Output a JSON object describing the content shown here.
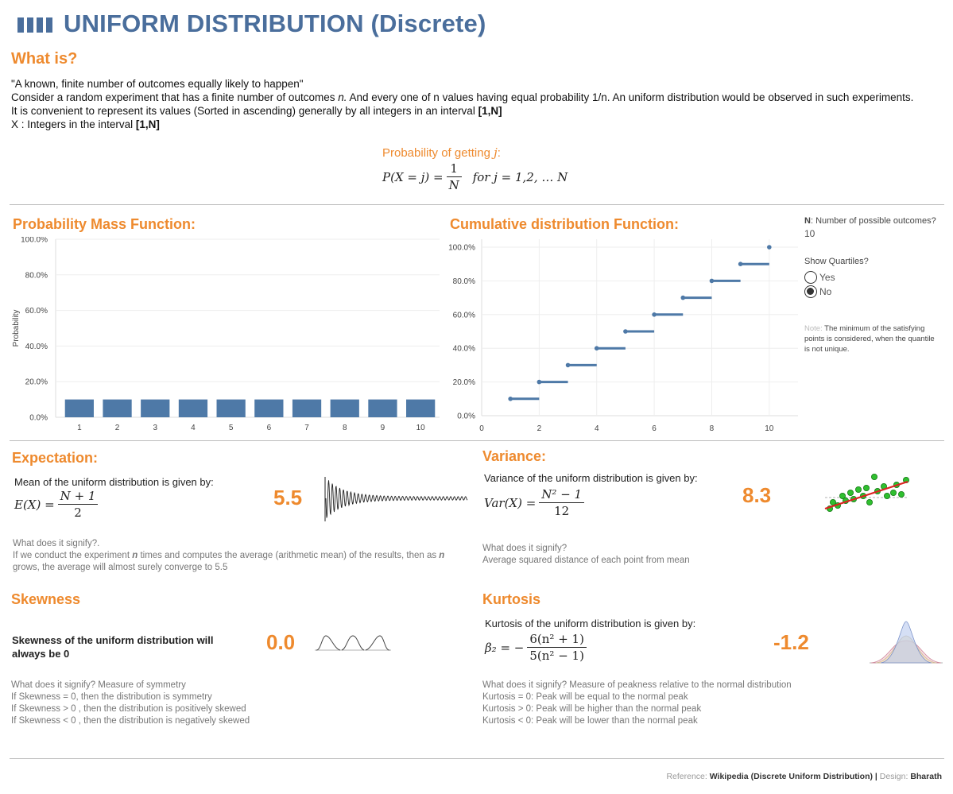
{
  "header": {
    "title_icon": "bar-chart-icon",
    "title": "UNIFORM DISTRIBUTION (Discrete)"
  },
  "intro": {
    "heading": "What is?",
    "quote": "\"A known, finite number of outcomes equally likely to happen\"",
    "line2_pre": "Consider a random experiment that has a finite number of outcomes ",
    "line2_n": "n.",
    "line2_post": " And every one of n values having equal probability 1/n. An uniform distribution would be observed in such experiments.",
    "line3_pre": "It is convenient to represent its values (Sorted in ascending) generally by all integers in an interval ",
    "line3_bold": "[1,N]",
    "line4_pre": "X : Integers in the interval ",
    "line4_bold": "[1,N]"
  },
  "prob_formula": {
    "label_pre": "Probability of getting ",
    "label_var": "j",
    "label_post": ":",
    "lhs": "P(X = j) =",
    "num": "1",
    "den": "N",
    "rhs": "for j = 1,2, … N"
  },
  "pmf": {
    "title": "Probability Mass Function:",
    "ylabel": "Probability"
  },
  "cdf": {
    "title": "Cumulative distribution Function:"
  },
  "controls": {
    "n_label_bold": "N",
    "n_label": ": Number of possible outcomes?",
    "n_value": "10",
    "quartiles_label": "Show Quartiles?",
    "opt_yes": "Yes",
    "opt_no": "No",
    "selected": "No",
    "note_label": "Note:",
    "note_text": " The minimum of the satisfying points is considered, when the quantile is not unique."
  },
  "expectation": {
    "title": "Expectation:",
    "desc": "Mean of the uniform distribution is given by:",
    "lhs": "E(X) =",
    "num": "N + 1",
    "den": "2",
    "value": "5.5",
    "signify_q": "What does it signify?.",
    "signify_pre": "If we conduct the experiment ",
    "signify_n": "n",
    "signify_post": " times and computes the average (arithmetic mean) of the results, then as ",
    "signify_n2": "n",
    "signify_line2": "grows, the average will almost surely converge to 5.5"
  },
  "variance": {
    "title": "Variance:",
    "desc": "Variance of the uniform distribution is given by:",
    "lhs": "Var(X) =",
    "num": "N² − 1",
    "den": "12",
    "value": "8.3",
    "signify_q": "What does it signify?",
    "signify": "Average squared distance of each point from mean"
  },
  "skewness": {
    "title": "Skewness",
    "desc_line1": "Skewness of the uniform distribution will",
    "desc_line2": "always be 0",
    "value": "0.0",
    "signify_lines": [
      "What does it signify?  Measure of symmetry",
      "If Skewness = 0, then the distribution is symmetry",
      "If Skewness > 0 , then the distribution is positively skewed",
      "If Skewness < 0 , then the distribution is negatively skewed"
    ]
  },
  "kurtosis": {
    "title": "Kurtosis",
    "desc": "Kurtosis of the uniform distribution is given by:",
    "lhs": "β₂ = −",
    "num": "6(n² + 1)",
    "den": "5(n² − 1)",
    "value": "-1.2",
    "signify_lines": [
      "What does it signify?  Measure of peakness relative to the normal distribution",
      "Kurtosis = 0: Peak will be equal to the normal peak",
      "Kurtosis > 0: Peak will be higher than the normal peak",
      "Kurtosis < 0: Peak will be lower than the normal peak"
    ]
  },
  "footer": {
    "ref_label": "Reference:",
    "ref_value": "Wikipedia (Discrete Uniform Distribution)",
    "sep": " | ",
    "design_label": "Design:",
    "design_value": "Bharath"
  },
  "colors": {
    "accent": "#ee8a2e",
    "title_blue": "#4a6e9c",
    "bar": "#4e79a7"
  },
  "chart_data": [
    {
      "type": "bar",
      "title": "Probability Mass Function:",
      "ylabel": "Probability",
      "categories": [
        "1",
        "2",
        "3",
        "4",
        "5",
        "6",
        "7",
        "8",
        "9",
        "10"
      ],
      "values": [
        0.1,
        0.1,
        0.1,
        0.1,
        0.1,
        0.1,
        0.1,
        0.1,
        0.1,
        0.1
      ],
      "ylim": [
        0,
        1
      ],
      "yticks": [
        "0.0%",
        "20.0%",
        "40.0%",
        "60.0%",
        "80.0%",
        "100.0%"
      ],
      "grid": true
    },
    {
      "type": "line",
      "title": "Cumulative distribution Function:",
      "x": [
        1,
        2,
        3,
        4,
        5,
        6,
        7,
        8,
        9,
        10
      ],
      "values": [
        0.1,
        0.2,
        0.3,
        0.4,
        0.5,
        0.6,
        0.7,
        0.8,
        0.9,
        1.0
      ],
      "xlim": [
        0,
        11
      ],
      "xticks": [
        "0",
        "2",
        "4",
        "6",
        "8",
        "10"
      ],
      "ylim": [
        0,
        1
      ],
      "yticks": [
        "0.0%",
        "20.0%",
        "40.0%",
        "60.0%",
        "80.0%",
        "100.0%"
      ],
      "grid": true
    }
  ]
}
